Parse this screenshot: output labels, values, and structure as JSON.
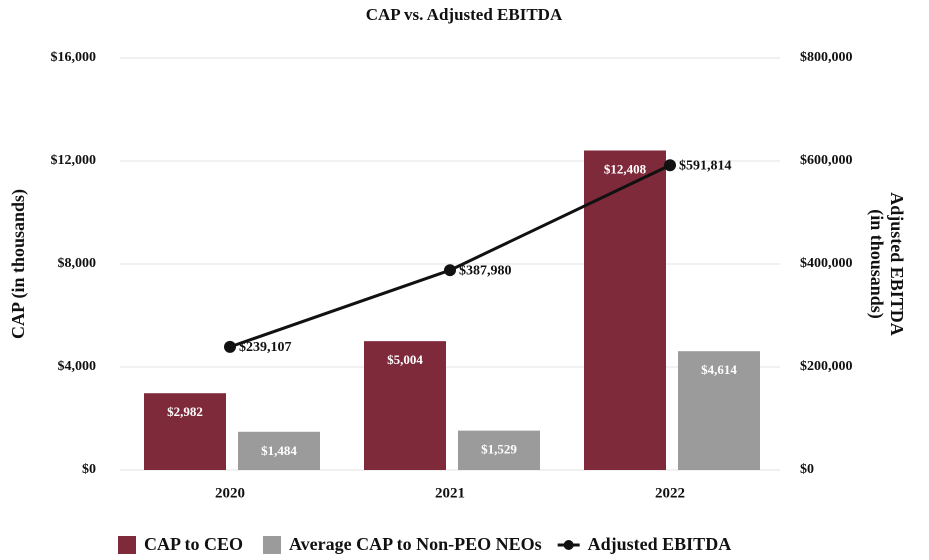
{
  "chart_data": {
    "type": "bar_line",
    "title": "CAP vs. Adjusted EBITDA",
    "ylabel": "CAP (in thousands)",
    "y2label": [
      "Adjusted EBITDA",
      "(in thousands)"
    ],
    "categories": [
      "2020",
      "2021",
      "2022"
    ],
    "series": [
      {
        "name": "CAP to CEO",
        "type": "bar",
        "color": "#7f2a3a",
        "values": [
          2982,
          5004,
          12408
        ],
        "value_labels": [
          "$2,982",
          "$5,004",
          "$12,408"
        ]
      },
      {
        "name": "Average CAP to Non-PEO NEOs",
        "type": "bar",
        "color": "#9b9b9b",
        "values": [
          1484,
          1529,
          4614
        ],
        "value_labels": [
          "$1,484",
          "$1,529",
          "$4,614"
        ]
      },
      {
        "name": "Adjusted EBITDA",
        "type": "line",
        "axis": "y2",
        "color": "#111111",
        "values": [
          239107,
          387980,
          591814
        ],
        "value_labels": [
          "$239,107",
          "$387,980",
          "$591,814"
        ]
      }
    ],
    "ylim": [
      0,
      16000
    ],
    "yticks": [
      {
        "value": 0,
        "label": "$0"
      },
      {
        "value": 4000,
        "label": "$4,000"
      },
      {
        "value": 8000,
        "label": "$8,000"
      },
      {
        "value": 12000,
        "label": "$12,000"
      },
      {
        "value": 16000,
        "label": "$16,000"
      }
    ],
    "y2lim": [
      0,
      800000
    ],
    "y2ticks": [
      {
        "value": 0,
        "label": "$0"
      },
      {
        "value": 200000,
        "label": "$200,000"
      },
      {
        "value": 400000,
        "label": "$400,000"
      },
      {
        "value": 600000,
        "label": "$600,000"
      },
      {
        "value": 800000,
        "label": "$800,000"
      }
    ],
    "grid": true,
    "legend": "bottom"
  }
}
